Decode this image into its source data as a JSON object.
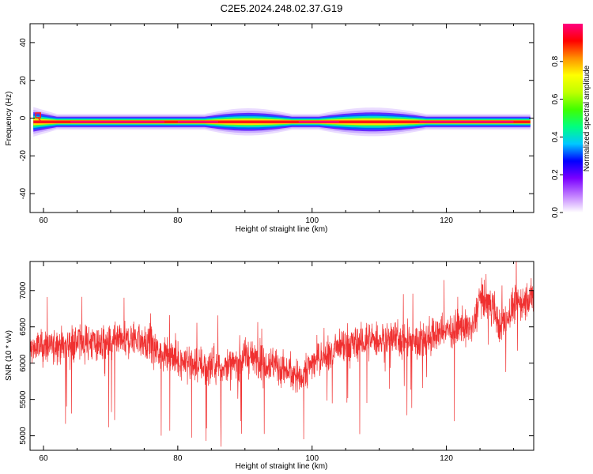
{
  "title": "C2E5.2024.248.02.37.G19",
  "chart_data": [
    {
      "type": "heatmap",
      "xlabel": "Height of straight line (km)",
      "ylabel": "Frequency (Hz)",
      "xlim": [
        58,
        133
      ],
      "ylim": [
        -50,
        50
      ],
      "xticks": [
        60,
        80,
        100,
        120
      ],
      "yticks": [
        40,
        20,
        0,
        -20,
        -40
      ],
      "band": {
        "center_hz": -2,
        "start_km": 58.5,
        "end_km": 132.5,
        "notes": "bright narrow band at about -2 Hz along the full height range; wider spread near 58-62 km, 85-96 km and 102-116 km"
      },
      "colorbar": {
        "label": "Normalized spectral amplitude",
        "range": [
          0,
          1
        ],
        "ticks": [
          "0.0",
          "0.2",
          "0.4",
          "0.6",
          "0.8"
        ],
        "colors": [
          "#ffffff",
          "#c07dff",
          "#7a00ff",
          "#0000ff",
          "#00c8ff",
          "#00ff80",
          "#40ff00",
          "#c0ff00",
          "#ffff00",
          "#ff9000",
          "#ff0000",
          "#ff0080"
        ]
      }
    },
    {
      "type": "line",
      "xlabel": "Height of straight line (km)",
      "ylabel": "SNR (10 * v/v)",
      "xlim": [
        58,
        133
      ],
      "ylim": [
        4800,
        7400
      ],
      "xticks": [
        60,
        80,
        100,
        120
      ],
      "yticks": [
        7000,
        6500,
        6000,
        5500,
        5000
      ],
      "color": "#f03030",
      "trend": {
        "x": [
          58,
          62,
          66,
          70,
          74,
          76,
          80,
          84,
          88,
          90,
          94,
          98,
          100,
          104,
          108,
          112,
          116,
          120,
          124,
          125,
          127,
          128,
          130,
          133
        ],
        "y": [
          6200,
          6250,
          6300,
          6250,
          6350,
          6200,
          6050,
          5950,
          5950,
          6100,
          6000,
          5800,
          6000,
          6200,
          6300,
          6350,
          6300,
          6450,
          6500,
          6900,
          6800,
          6450,
          6800,
          6900
        ]
      },
      "noise_amplitude": 230
    }
  ]
}
